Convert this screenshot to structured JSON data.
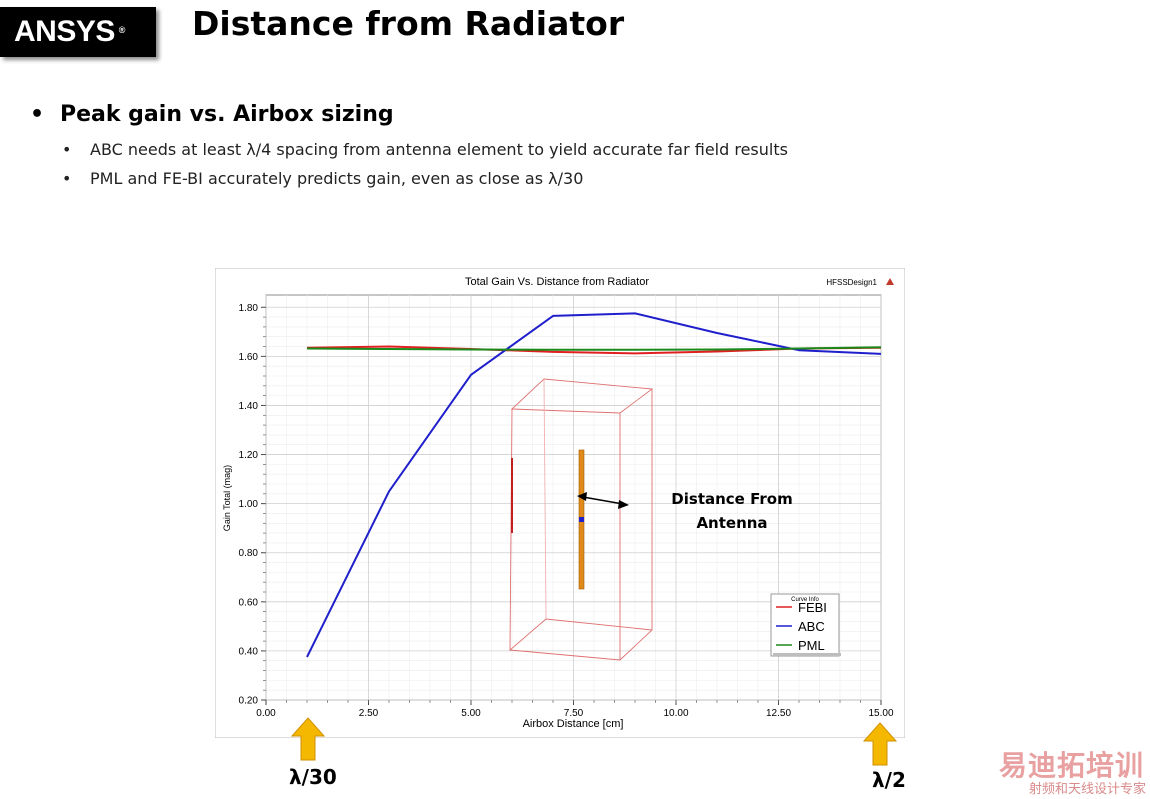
{
  "logo": {
    "text": "ANSYS",
    "mark": "®"
  },
  "slide_title": "Distance from Radiator",
  "bullets": {
    "main": "Peak gain vs. Airbox sizing",
    "sub": [
      "ABC needs at least λ/4 spacing from antenna element to yield accurate far field results",
      "PML and FE-BI accurately predicts gain, even as close as λ/30"
    ]
  },
  "chart_data": {
    "type": "line",
    "title": "Total Gain Vs. Distance from Radiator",
    "design_label": "HFSSDesign1",
    "xlabel": "Airbox Distance [cm]",
    "ylabel": "Gain Total (mag)",
    "xlim": [
      0,
      15
    ],
    "ylim": [
      0.2,
      1.85
    ],
    "xticks": [
      "0.00",
      "2.50",
      "5.00",
      "7.50",
      "10.00",
      "12.50",
      "15.00"
    ],
    "yticks": [
      "0.20",
      "0.40",
      "0.60",
      "0.80",
      "1.00",
      "1.20",
      "1.40",
      "1.60",
      "1.80"
    ],
    "legend_title": "Curve Info",
    "legend_position": "bottom-right",
    "grid": true,
    "series": [
      {
        "name": "FEBI",
        "color": "#e02020",
        "x": [
          1,
          3,
          5,
          7,
          9,
          11,
          13,
          15
        ],
        "y": [
          1.635,
          1.64,
          1.63,
          1.618,
          1.612,
          1.62,
          1.632,
          1.635
        ]
      },
      {
        "name": "ABC",
        "color": "#1f1fcc",
        "x": [
          1,
          3,
          5,
          7,
          9,
          11,
          13,
          15
        ],
        "y": [
          0.375,
          1.05,
          1.525,
          1.765,
          1.775,
          1.695,
          1.625,
          1.61
        ]
      },
      {
        "name": "PML",
        "color": "#1a8a1a",
        "x": [
          1,
          3,
          5,
          7,
          9,
          11,
          13,
          15
        ],
        "y": [
          1.632,
          1.63,
          1.628,
          1.627,
          1.627,
          1.628,
          1.632,
          1.637
        ]
      }
    ],
    "annotation": {
      "line1": "Distance From",
      "line2": "Antenna"
    }
  },
  "markers": {
    "left": "λ/30",
    "right": "λ/2",
    "arrow_color": "#f5b800"
  },
  "watermark": {
    "main": "易迪拓培训",
    "sub": "射频和天线设计专家"
  }
}
